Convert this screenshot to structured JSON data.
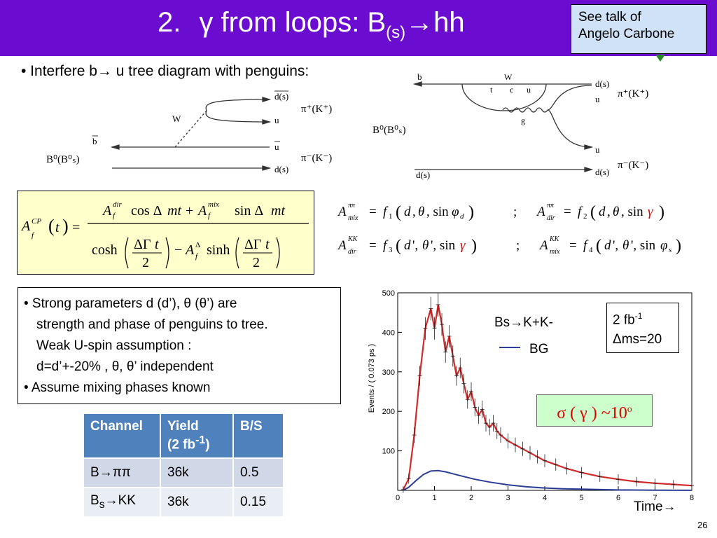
{
  "header": {
    "number": "2.",
    "title_prefix": "γ from loops: B",
    "title_sub": "(s)",
    "title_suffix": "→hh",
    "bg_color": "#6a0dd0"
  },
  "note": {
    "line1": "See talk of",
    "line2": "Angelo Carbone"
  },
  "bullet1": "• Interfere b→ u tree diagram with penguins:",
  "diagram_tree": {
    "W": "W",
    "b": "b",
    "d_s_bar": "d(s)",
    "u": "u",
    "u_bar": "u",
    "d_s": "d(s)",
    "pi_plus": "π⁺(K⁺)",
    "pi_minus": "π⁻(K⁻)",
    "B0": "B⁰(B⁰ₛ)"
  },
  "diagram_penguin": {
    "b": "b",
    "W": "W",
    "t": "t",
    "c": "c",
    "u": "u",
    "g": "g",
    "d_s_bar": "d(s)",
    "u_out": "u",
    "u_bar": "u",
    "d_s": "d(s)",
    "pi_plus": "π⁺(K⁺)",
    "pi_minus": "π⁻(K⁻)",
    "B0": "B⁰(B⁰ₛ)"
  },
  "text_box": {
    "line1": "• Strong parameters d (d’), θ (θ’) are",
    "line2": "strength and phase of penguins to tree.",
    "line3": "Weak U-spin assumption :",
    "line4": "d=d’+-20%    ,    θ, θ’ independent",
    "line5": "• Assume mixing phases known"
  },
  "table": {
    "headers": [
      "Channel",
      "Yield",
      "(2 fb",
      "-1",
      ")",
      "B/S"
    ],
    "rows": [
      {
        "channel_pre": "B",
        "channel_post": "ππ",
        "yield": "36k",
        "bs": "0.5"
      },
      {
        "channel_pre": "B",
        "channel_sub": "s",
        "channel_post": "KK",
        "yield": "36k",
        "bs": "0.15"
      }
    ]
  },
  "plot": {
    "ylabel": "Events / ( 0.073 ps )",
    "legend_signal": "Bs→K+K-",
    "legend_bg": "BG",
    "lumi_line1": "2 fb",
    "lumi_sup": "-1",
    "lumi_line2": "Δms=20",
    "sigma": "σ ( γ ) ~10",
    "sigma_deg": "o",
    "time_label": "Time→",
    "x_ticks": [
      "0",
      "1",
      "2",
      "3",
      "4",
      "5",
      "6",
      "7",
      "8"
    ],
    "y_ticks": [
      "100",
      "200",
      "300",
      "400",
      "500"
    ],
    "signal_color": "#d22a2a",
    "bg_color": "#2b3d96"
  },
  "chart_data": {
    "type": "line",
    "title": "",
    "xlabel": "Time",
    "ylabel": "Events / ( 0.073 ps )",
    "xlim": [
      0,
      8
    ],
    "ylim": [
      0,
      500
    ],
    "series": [
      {
        "name": "Bs→K+K-",
        "x": [
          0.15,
          0.3,
          0.45,
          0.6,
          0.75,
          0.9,
          1.0,
          1.1,
          1.2,
          1.3,
          1.4,
          1.5,
          1.6,
          1.7,
          1.8,
          1.9,
          2.0,
          2.1,
          2.2,
          2.3,
          2.4,
          2.5,
          2.6,
          2.7,
          2.8,
          3.0,
          3.2,
          3.4,
          3.6,
          3.8,
          4.0,
          4.3,
          4.6,
          5.0,
          5.5,
          6.0,
          6.5,
          7.0,
          7.5,
          8.0
        ],
        "values": [
          2,
          30,
          140,
          290,
          410,
          460,
          410,
          470,
          420,
          350,
          390,
          340,
          290,
          310,
          270,
          230,
          250,
          210,
          190,
          205,
          170,
          160,
          170,
          150,
          140,
          125,
          115,
          105,
          95,
          85,
          75,
          65,
          55,
          45,
          35,
          28,
          22,
          18,
          15,
          12
        ]
      },
      {
        "name": "BG",
        "x": [
          0.15,
          0.3,
          0.5,
          0.7,
          0.9,
          1.1,
          1.3,
          1.5,
          1.8,
          2.1,
          2.5,
          3.0,
          3.5,
          4.0,
          4.5,
          5.0,
          6.0,
          7.0,
          8.0
        ],
        "values": [
          0,
          8,
          25,
          40,
          49,
          50,
          47,
          42,
          35,
          28,
          21,
          14,
          9,
          6,
          4,
          3,
          1,
          0.5,
          0.2
        ]
      }
    ]
  }
}
